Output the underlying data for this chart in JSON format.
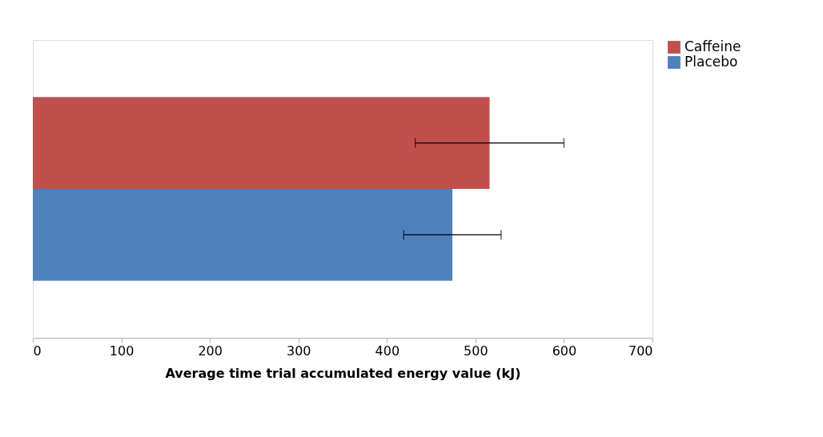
{
  "chart_data": {
    "type": "bar",
    "orientation": "horizontal",
    "categories": [
      null
    ],
    "xlabel": "Average time trial accumulated energy value (kJ)",
    "series": [
      {
        "name": "Caffeine",
        "color": "#c0504d",
        "values": [
          516
        ],
        "errors": [
          84
        ]
      },
      {
        "name": "Placebo",
        "color": "#4f81bd",
        "values": [
          474
        ],
        "errors": [
          55
        ]
      }
    ],
    "xlim": [
      0,
      700
    ],
    "xticks": [
      0,
      100,
      200,
      300,
      400,
      500,
      600,
      700
    ],
    "grid": false,
    "legend": "right"
  }
}
